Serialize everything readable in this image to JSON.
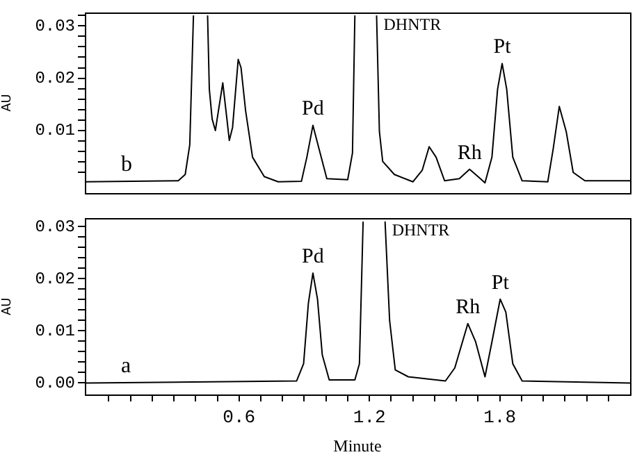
{
  "chart_data": [
    {
      "type": "line",
      "color": "#000000",
      "ylabel": "AU",
      "tick_labels": "y",
      "grid": false,
      "marker": "none",
      "line_style": "solid",
      "xlim": [
        -0.11,
        2.4
      ],
      "ylim": [
        -0.0019,
        0.0325
      ],
      "yticks": [
        {
          "value": 0.002,
          "label": null
        },
        {
          "value": 0.004,
          "label": null
        },
        {
          "value": 0.006,
          "label": null
        },
        {
          "value": 0.008,
          "label": null
        },
        {
          "value": 0.01,
          "label": "0.01"
        },
        {
          "value": 0.012,
          "label": null
        },
        {
          "value": 0.014,
          "label": null
        },
        {
          "value": 0.016,
          "label": null
        },
        {
          "value": 0.018,
          "label": null
        },
        {
          "value": 0.02,
          "label": "0.02"
        },
        {
          "value": 0.022,
          "label": null
        },
        {
          "value": 0.024,
          "label": null
        },
        {
          "value": 0.026,
          "label": null
        },
        {
          "value": 0.028,
          "label": null
        },
        {
          "value": 0.03,
          "label": "0.03"
        },
        {
          "value": 0.032,
          "label": null
        }
      ],
      "x": [
        -0.108,
        0.32,
        0.352,
        0.373,
        0.39,
        0.42,
        0.455,
        0.463,
        0.476,
        0.491,
        0.502,
        0.525,
        0.544,
        0.555,
        0.57,
        0.596,
        0.609,
        0.63,
        0.662,
        0.716,
        0.78,
        0.887,
        0.912,
        0.94,
        0.968,
        1.004,
        1.1,
        1.122,
        1.133,
        1.18,
        1.233,
        1.246,
        1.261,
        1.315,
        1.4,
        1.443,
        1.475,
        1.507,
        1.546,
        1.614,
        1.661,
        1.7,
        1.732,
        1.764,
        1.79,
        1.811,
        1.832,
        1.86,
        1.903,
        2.021,
        2.046,
        2.074,
        2.106,
        2.138,
        2.192,
        2.4
      ],
      "values": [
        0.0002,
        0.0004,
        0.0016,
        0.0073,
        0.032,
        null,
        0.032,
        0.0179,
        0.0122,
        0.01,
        0.013,
        0.0191,
        0.0122,
        0.0081,
        0.0106,
        0.0236,
        0.022,
        0.0138,
        0.0049,
        0.0012,
        0.0002,
        0.0003,
        0.0049,
        0.011,
        0.0065,
        0.0008,
        0.0006,
        0.0057,
        0.032,
        null,
        0.032,
        0.0098,
        0.0041,
        0.0016,
        0.0002,
        0.0024,
        0.0069,
        0.0049,
        0.0004,
        0.0008,
        0.0026,
        0.0012,
        0.0,
        0.0049,
        0.0179,
        0.0228,
        0.0179,
        0.0049,
        0.0004,
        0.0002,
        0.0065,
        0.0146,
        0.0098,
        0.002,
        0.0004,
        0.0004
      ],
      "annotations": [
        {
          "text": "Pd",
          "x": 0.94,
          "y": 0.011
        },
        {
          "text": "DHNTR",
          "x": 1.233,
          "y": 0.0325
        },
        {
          "text": "Rh",
          "x": 1.661,
          "y": 0.0026
        },
        {
          "text": "Pt",
          "x": 1.811,
          "y": 0.0228
        },
        "b"
      ]
    },
    {
      "type": "line",
      "color": "#000000",
      "ylabel": "AU",
      "xlabel": "Minute",
      "grid": false,
      "marker": "none",
      "line_style": "solid",
      "xlim": [
        -0.11,
        2.4
      ],
      "xticks": [
        {
          "value": 0,
          "label": null
        },
        {
          "value": 0.1,
          "label": null
        },
        {
          "value": 0.2,
          "label": null
        },
        {
          "value": 0.3,
          "label": null
        },
        {
          "value": 0.4,
          "label": null
        },
        {
          "value": 0.5,
          "label": null
        },
        0.6,
        {
          "value": 0.7,
          "label": null
        },
        {
          "value": 0.8,
          "label": null
        },
        {
          "value": 0.9,
          "label": null
        },
        {
          "value": 1.0,
          "label": null
        },
        {
          "value": 1.1,
          "label": null
        },
        1.2,
        {
          "value": 1.3,
          "label": null
        },
        {
          "value": 1.4,
          "label": null
        },
        {
          "value": 1.5,
          "label": null
        },
        {
          "value": 1.6,
          "label": null
        },
        {
          "value": 1.7,
          "label": null
        },
        1.8,
        {
          "value": 1.9,
          "label": null
        },
        {
          "value": 2.0,
          "label": null
        },
        {
          "value": 2.1,
          "label": null
        },
        {
          "value": 2.2,
          "label": null
        },
        {
          "value": 2.3,
          "label": null
        }
      ],
      "ylim": [
        -0.0022,
        0.0316
      ],
      "yticks": [
        {
          "value": 0,
          "label": "0.00"
        },
        {
          "value": 0.002,
          "label": null
        },
        {
          "value": 0.004,
          "label": null
        },
        {
          "value": 0.006,
          "label": null
        },
        {
          "value": 0.008,
          "label": null
        },
        {
          "value": 0.01,
          "label": "0.01"
        },
        {
          "value": 0.012,
          "label": null
        },
        {
          "value": 0.014,
          "label": null
        },
        {
          "value": 0.016,
          "label": null
        },
        {
          "value": 0.018,
          "label": null
        },
        {
          "value": 0.02,
          "label": "0.02"
        },
        {
          "value": 0.022,
          "label": null
        },
        {
          "value": 0.024,
          "label": null
        },
        {
          "value": 0.026,
          "label": null
        },
        {
          "value": 0.028,
          "label": null
        },
        {
          "value": 0.03,
          "label": "0.03"
        }
      ],
      "x": [
        -0.108,
        0.865,
        0.897,
        0.919,
        0.94,
        0.961,
        0.983,
        1.015,
        1.133,
        1.154,
        1.171,
        1.22,
        1.272,
        1.293,
        1.319,
        1.379,
        1.55,
        1.593,
        1.653,
        1.689,
        1.732,
        1.764,
        1.802,
        1.828,
        1.86,
        1.903,
        2.4
      ],
      "values": [
        0.0,
        0.0004,
        0.0037,
        0.0153,
        0.0211,
        0.0161,
        0.0054,
        0.0006,
        0.0006,
        0.0037,
        0.031,
        null,
        0.031,
        0.012,
        0.0025,
        0.0012,
        0.0004,
        0.0029,
        0.0114,
        0.0079,
        0.0012,
        0.0079,
        0.0161,
        0.0136,
        0.0037,
        0.0004,
        0.0
      ],
      "annotations": [
        {
          "text": "Pd",
          "x": 0.94,
          "y": 0.0211
        },
        {
          "text": "DHNTR",
          "x": 1.272,
          "y": 0.0316
        },
        {
          "text": "Rh",
          "x": 1.653,
          "y": 0.0114
        },
        {
          "text": "Pt",
          "x": 1.802,
          "y": 0.0161
        },
        "a"
      ]
    }
  ]
}
